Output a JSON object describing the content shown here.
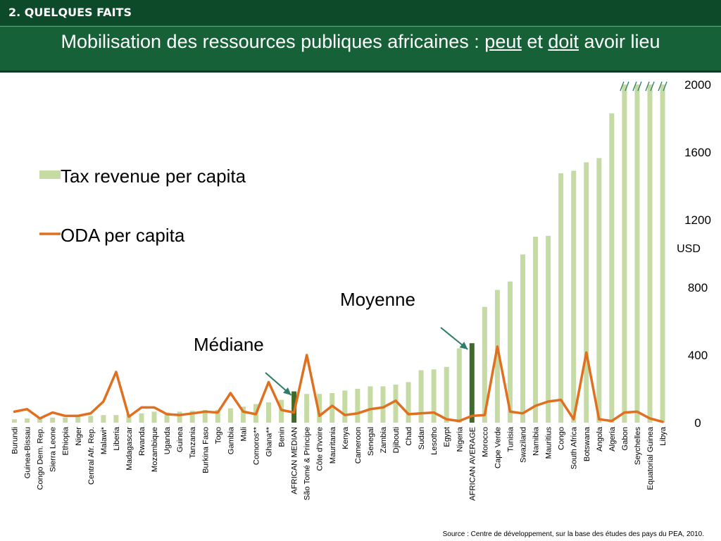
{
  "header": {
    "section": "2. QUELQUES FAITS",
    "title_part1": "Mobilisation des ressources publiques africaines : ",
    "title_peut": "peut",
    "title_et": " et ",
    "title_doit": "doit",
    "title_part2": " avoir lieu"
  },
  "annotations": {
    "moyenne": "Moyenne",
    "mediane": "Médiane"
  },
  "source": "Source : Centre de développement, sur la base des études des pays du PEA, 2010.",
  "colors": {
    "bars": "#c6dba3",
    "highlight_bars": "#3f6a2a",
    "line": "#e07020",
    "arrow": "#2e7d68"
  },
  "chart_data": {
    "type": "bar",
    "title": "",
    "xlabel": "",
    "ylabel": "USD",
    "ylim": [
      0,
      2000
    ],
    "yticks": [
      0,
      400,
      800,
      1200,
      1600,
      2000
    ],
    "legend": [
      "Tax revenue per capita",
      "ODA per capita"
    ],
    "legend_position": "left",
    "truncated_bars": [
      "Gabon",
      "Seychelles",
      "Equatorial Guinea",
      "Libya"
    ],
    "highlighted": [
      "AFRICAN MEDIAN",
      "AFRICAN AVERAGE"
    ],
    "categories": [
      "Burundi",
      "Guinea-Bissau",
      "Congo Dem. Rep.",
      "Sierra Leone",
      "Ethiopia",
      "Niger",
      "Central Afr. Rep.",
      "Malawi*",
      "Liberia",
      "Madagascar",
      "Rwanda",
      "Mozambique",
      "Uganda",
      "Guinea",
      "Tanzania",
      "Burkina Faso",
      "Togo",
      "Gambia",
      "Mali",
      "Comoros**",
      "Ghana**",
      "Benin",
      "AFRICAN MEDIAN",
      "São Tomé & Principe",
      "Côte d'Ivoire",
      "Mauritania",
      "Kenya",
      "Cameroon",
      "Senegal",
      "Zambia",
      "Djibouti",
      "Chad",
      "Sudan",
      "Lesotho",
      "Egypt",
      "Nigeria",
      "AFRICAN AVERAGE",
      "Morocco",
      "Cape Verde",
      "Tunisia",
      "Swaziland",
      "Namibia",
      "Mauritius",
      "Congo",
      "South Africa",
      "Botswana",
      "Angola",
      "Algeria",
      "Gabon",
      "Seychelles",
      "Equatorial Guinea",
      "Libya"
    ],
    "series": [
      {
        "name": "Tax revenue per capita",
        "type": "bar",
        "values": [
          20,
          25,
          25,
          30,
          30,
          35,
          40,
          45,
          45,
          50,
          55,
          65,
          60,
          65,
          70,
          75,
          75,
          85,
          95,
          110,
          120,
          135,
          185,
          170,
          170,
          175,
          190,
          200,
          215,
          215,
          225,
          240,
          310,
          315,
          330,
          440,
          470,
          685,
          785,
          835,
          995,
          1100,
          1105,
          1475,
          1490,
          1540,
          1565,
          1830,
          2000,
          2000,
          2000,
          2000
        ]
      },
      {
        "name": "ODA per capita",
        "type": "line",
        "values": [
          65,
          80,
          25,
          60,
          40,
          40,
          55,
          125,
          300,
          35,
          90,
          90,
          50,
          45,
          55,
          65,
          60,
          175,
          65,
          50,
          240,
          75,
          60,
          400,
          40,
          100,
          45,
          55,
          80,
          90,
          130,
          50,
          55,
          60,
          20,
          10,
          40,
          45,
          450,
          65,
          55,
          100,
          125,
          135,
          20,
          415,
          20,
          10,
          60,
          65,
          25,
          5
        ]
      }
    ]
  }
}
